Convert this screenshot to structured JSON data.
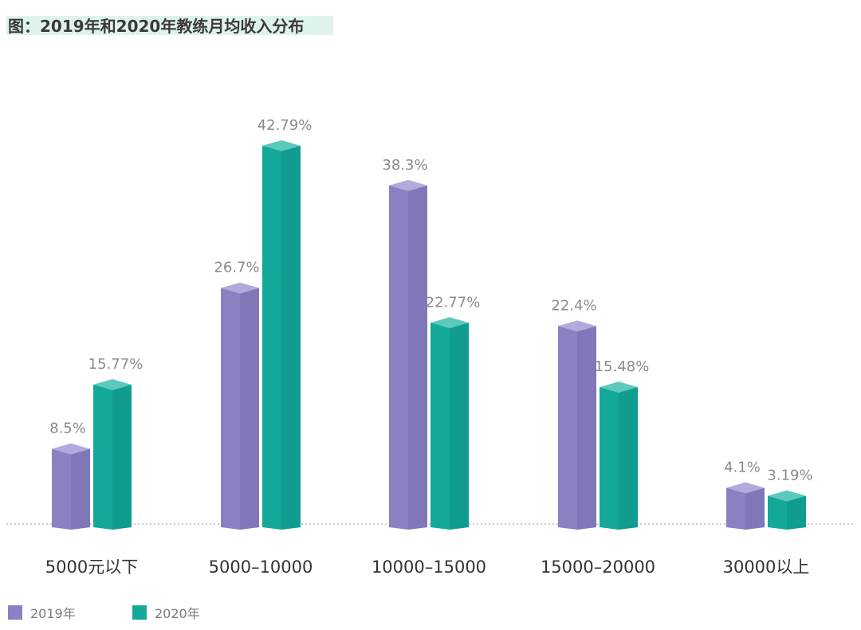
{
  "title": "图：2019年和2020年教练月均收入分布",
  "colors": {
    "s2019": "#8a80c2",
    "s2020": "#13a89a",
    "title_bg": "#dff2ee"
  },
  "chart_data": {
    "type": "bar",
    "title": "图：2019年和2020年教练月均收入分布",
    "categories": [
      "5000元以下",
      "5000–10000",
      "10000–15000",
      "15000–20000",
      "30000以上"
    ],
    "series": [
      {
        "name": "2019年",
        "values": [
          8.5,
          26.7,
          38.3,
          22.4,
          4.1
        ],
        "labels": [
          "8.5%",
          "26.7%",
          "38.3%",
          "22.4%",
          "4.1%"
        ]
      },
      {
        "name": "2020年",
        "values": [
          15.77,
          42.79,
          22.77,
          15.48,
          3.19
        ],
        "labels": [
          "15.77%",
          "42.79%",
          "22.77%",
          "15.48%",
          "3.19%"
        ]
      }
    ],
    "unit": "%",
    "ylim": [
      0,
      45
    ],
    "grid": false,
    "legend_position": "bottom-left"
  },
  "legend": {
    "items": [
      "2019年",
      "2020年"
    ]
  }
}
